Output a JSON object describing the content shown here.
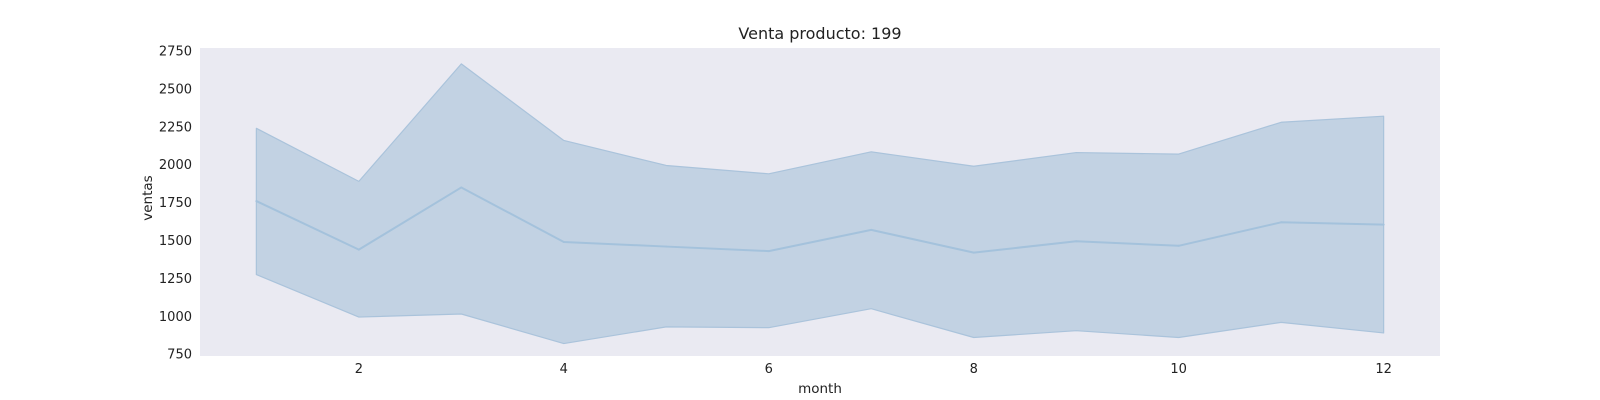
{
  "chart_data": {
    "type": "line",
    "title": "Venta producto: 199",
    "xlabel": "month",
    "ylabel": "ventas",
    "xlim": [
      0.45,
      12.55
    ],
    "ylim": [
      738,
      2770
    ],
    "xticks": [
      2,
      4,
      6,
      8,
      10,
      12
    ],
    "yticks": [
      750,
      1000,
      1250,
      1500,
      1750,
      2000,
      2250,
      2500,
      2750
    ],
    "grid": false,
    "x": [
      1,
      2,
      3,
      4,
      5,
      6,
      7,
      8,
      9,
      10,
      11,
      12
    ],
    "series": [
      {
        "values": [
          1760,
          1440,
          1850,
          1490,
          1460,
          1430,
          1570,
          1420,
          1495,
          1465,
          1620,
          1605
        ],
        "lower": [
          1275,
          995,
          1015,
          820,
          930,
          925,
          1050,
          860,
          905,
          860,
          960,
          890
        ],
        "upper": [
          2240,
          1890,
          2665,
          2160,
          1995,
          1940,
          2085,
          1990,
          2080,
          2070,
          2280,
          2320
        ]
      }
    ],
    "colors": {
      "background": "#eaeaf2",
      "line": "#a4c2dc",
      "band": "#c2d2e3",
      "band_edge": "#aac3db"
    }
  }
}
